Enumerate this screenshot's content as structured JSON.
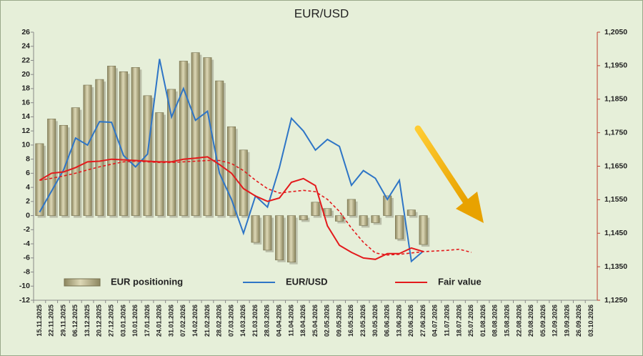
{
  "chart_data": {
    "type": "combo",
    "title": "EUR/USD",
    "categories": [
      "15.11.2025",
      "22.11.2025",
      "29.11.2025",
      "06.12.2025",
      "13.12.2025",
      "20.12.2025",
      "27.12.2025",
      "03.01.2026",
      "10.01.2026",
      "17.01.2026",
      "24.01.2026",
      "31.01.2026",
      "07.02.2026",
      "14.02.2026",
      "21.02.2026",
      "28.02.2026",
      "07.03.2026",
      "14.03.2026",
      "21.03.2026",
      "28.03.2026",
      "04.04.2026",
      "11.04.2026",
      "18.04.2026",
      "25.04.2026",
      "02.05.2026",
      "09.05.2026",
      "16.05.2026",
      "23.05.2026",
      "30.05.2026",
      "06.06.2026",
      "13.06.2026",
      "20.06.2026",
      "27.06.2026",
      "04.07.2026",
      "11.07.2026",
      "18.07.2026",
      "25.07.2026",
      "01.08.2026",
      "08.08.2026",
      "15.08.2026",
      "22.08.2026",
      "29.08.2026",
      "05.09.2026",
      "12.09.2026",
      "19.09.2026",
      "26.09.2026",
      "03.10.2026"
    ],
    "series": [
      {
        "name": "EUR positioning",
        "type": "bar",
        "color": "#c9c39c",
        "values": [
          10.2,
          13.7,
          12.8,
          15.3,
          18.5,
          19.3,
          21.2,
          20.4,
          21.0,
          17.0,
          14.6,
          17.9,
          21.9,
          23.1,
          22.4,
          19.1,
          12.6,
          9.3,
          -3.8,
          -4.9,
          -6.3,
          -6.6,
          -0.6,
          1.9,
          1.0,
          -0.8,
          2.3,
          -1.4,
          -1.0,
          2.8,
          -3.3,
          0.8,
          -4.1,
          null,
          null,
          null,
          null,
          null,
          null,
          null,
          null,
          null,
          null,
          null,
          null,
          null,
          null
        ]
      },
      {
        "name": "EUR/USD",
        "type": "line",
        "axis": "y2",
        "color": "#2e75c6",
        "values": [
          1.1513,
          1.1576,
          1.1639,
          1.1734,
          1.1713,
          1.1783,
          1.1781,
          1.1682,
          1.1648,
          1.1686,
          1.197,
          1.1797,
          1.1882,
          1.1787,
          1.1814,
          1.1629,
          1.1551,
          1.145,
          1.1561,
          1.1528,
          1.1646,
          1.1793,
          1.1755,
          1.1698,
          1.173,
          1.1709,
          1.1593,
          1.1637,
          1.1614,
          1.1551,
          1.1608,
          1.1366,
          1.1397,
          null,
          null,
          null,
          null,
          null,
          null,
          null,
          null,
          null,
          null,
          null,
          null,
          null,
          null
        ]
      },
      {
        "name": "Fair value",
        "type": "line",
        "axis": "y2",
        "color": "#e31a1c",
        "values": [
          1.1608,
          1.1629,
          1.1633,
          1.1646,
          1.1663,
          1.1665,
          1.1671,
          1.1669,
          1.1667,
          1.1665,
          1.1663,
          1.1663,
          1.1671,
          1.1674,
          1.1678,
          1.1655,
          1.1629,
          1.1583,
          1.1561,
          1.1545,
          1.1555,
          1.1602,
          1.1613,
          1.1592,
          1.1472,
          1.1414,
          1.1393,
          1.1376,
          1.1372,
          1.1389,
          1.1389,
          1.1406,
          1.1395,
          null,
          null,
          null,
          null,
          null,
          null,
          null,
          null,
          null,
          null,
          null,
          null,
          null,
          null
        ]
      },
      {
        "type": "line",
        "axis": "y2",
        "color": "#e31a1c",
        "dash": true,
        "values": [
          1.1608,
          1.1614,
          1.1621,
          1.1629,
          1.1639,
          1.1648,
          1.1656,
          1.1663,
          1.1665,
          1.1663,
          1.1661,
          1.1661,
          1.1663,
          1.1665,
          1.1667,
          1.1667,
          1.1658,
          1.1637,
          1.1608,
          1.1583,
          1.157,
          1.1574,
          1.1578,
          1.1574,
          1.1551,
          1.1515,
          1.1465,
          1.1423,
          1.1391,
          1.1385,
          1.1387,
          1.1391,
          1.1395,
          1.1397,
          1.1399,
          1.1402,
          1.1393,
          null,
          null,
          null,
          null,
          null,
          null,
          null,
          null,
          null,
          null
        ]
      }
    ],
    "ylim": [
      -12,
      26
    ],
    "yticks": [
      -12,
      -10,
      -8,
      -6,
      -4,
      -2,
      0,
      2,
      4,
      6,
      8,
      10,
      12,
      14,
      16,
      18,
      20,
      22,
      24,
      26
    ],
    "y2lim": [
      1.125,
      1.205
    ],
    "y2ticks": [
      {
        "value": 1.125,
        "label": "1,1250"
      },
      {
        "value": 1.135,
        "label": "1,1350"
      },
      {
        "value": 1.145,
        "label": "1,1450"
      },
      {
        "value": 1.155,
        "label": "1,1550"
      },
      {
        "value": 1.165,
        "label": "1,1650"
      },
      {
        "value": 1.175,
        "label": "1,1750"
      },
      {
        "value": 1.185,
        "label": "1,1850"
      },
      {
        "value": 1.195,
        "label": "1,1950"
      },
      {
        "value": 1.205,
        "label": "1,2050"
      }
    ],
    "legend": "bottom"
  }
}
